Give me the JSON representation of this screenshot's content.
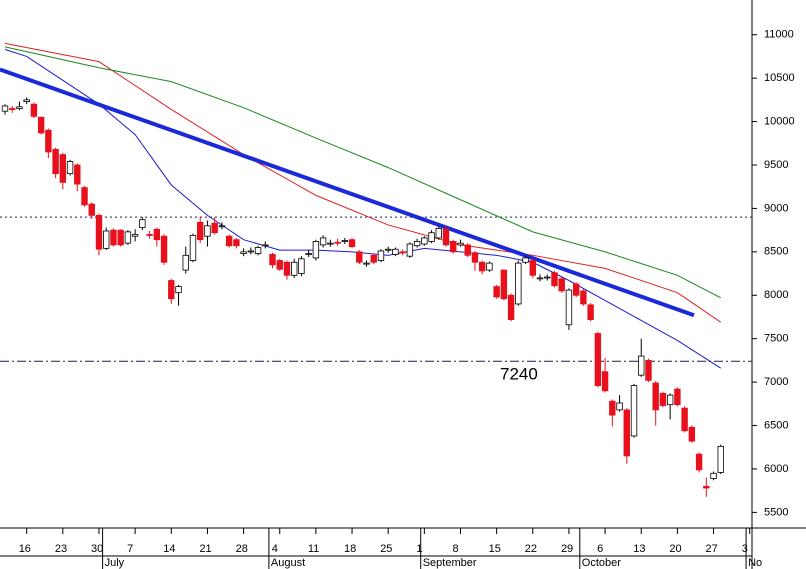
{
  "chart_data": {
    "type": "candlestick",
    "categories": [
      null,
      null,
      null,
      "16",
      null,
      null,
      null,
      null,
      "23",
      null,
      null,
      null,
      null,
      "30",
      null,
      null,
      null,
      null,
      "7",
      null,
      null,
      null,
      null,
      "14",
      null,
      null,
      null,
      null,
      "21",
      null,
      null,
      null,
      null,
      "28",
      null,
      null,
      null,
      null,
      "4",
      null,
      null,
      null,
      null,
      "11",
      null,
      null,
      null,
      null,
      "18",
      null,
      null,
      null,
      null,
      "25",
      null,
      null,
      null,
      null,
      "1",
      null,
      null,
      null,
      null,
      "8",
      null,
      null,
      null,
      null,
      "15",
      null,
      null,
      null,
      null,
      "22",
      null,
      null,
      null,
      null,
      "29",
      null,
      null,
      null,
      null,
      "6",
      null,
      null,
      null,
      null,
      "13",
      null,
      null,
      null,
      null,
      "20",
      null,
      null,
      null,
      null,
      "27",
      null,
      null,
      null,
      null,
      "3"
    ],
    "months": [
      {
        "category": 14,
        "label": "July"
      },
      {
        "category": 37,
        "label": "August"
      },
      {
        "category": 58,
        "label": "September"
      },
      {
        "category": 80,
        "label": "October"
      },
      {
        "category": 103,
        "label": "No"
      }
    ],
    "open": [
      10120,
      10150,
      10150,
      10230,
      10200,
      10050,
      9900,
      9680,
      9620,
      9400,
      9500,
      9240,
      9050,
      8920,
      8540,
      8750,
      8750,
      8600,
      8680,
      8780,
      8700,
      8760,
      8680,
      8170,
      8030,
      8290,
      8400,
      8840,
      8680,
      8830,
      8790,
      8680,
      8640,
      8480,
      8500,
      8480,
      8570,
      8470,
      8400,
      8380,
      8230,
      8250,
      8470,
      8430,
      8580,
      8590,
      8610,
      8620,
      8640,
      8500,
      8360,
      8460,
      8400,
      8520,
      8470,
      8500,
      8450,
      8570,
      8590,
      8620,
      8660,
      8760,
      8620,
      8580,
      8580,
      8490,
      8380,
      8290,
      8100,
      8290,
      8000,
      7900,
      8380,
      8400,
      8190,
      8200,
      8260,
      8190,
      7660,
      8130,
      8050,
      7890,
      7560,
      7120,
      6780,
      6680,
      6680,
      6380,
      7080,
      7250,
      6990,
      6870,
      6740,
      6920,
      6700,
      6480,
      6170,
      5800,
      5890,
      5960,
      null,
      null,
      null,
      null
    ],
    "high": [
      10200,
      10180,
      10230,
      10280,
      10220,
      10060,
      9920,
      9700,
      9640,
      9560,
      9520,
      9260,
      9070,
      8940,
      8780,
      8770,
      8760,
      8750,
      8760,
      8900,
      8740,
      8780,
      8700,
      8190,
      8120,
      8560,
      8710,
      8900,
      8860,
      8900,
      8840,
      8700,
      8660,
      8540,
      8550,
      8570,
      8620,
      8490,
      8420,
      8400,
      8420,
      8450,
      8520,
      8640,
      8690,
      8640,
      8650,
      8660,
      8660,
      8520,
      8400,
      8480,
      8530,
      8560,
      8550,
      8530,
      8610,
      8650,
      8680,
      8750,
      8800,
      8800,
      8640,
      8640,
      8600,
      8510,
      8400,
      8390,
      8120,
      8300,
      8020,
      8400,
      8450,
      8420,
      8240,
      8240,
      8280,
      8210,
      8080,
      8150,
      8070,
      7910,
      7580,
      7280,
      6800,
      6850,
      6700,
      6980,
      7500,
      7270,
      7010,
      6890,
      6870,
      6940,
      6720,
      6500,
      6190,
      5900,
      5970,
      6280,
      null,
      null,
      null,
      null
    ],
    "low": [
      10080,
      10100,
      10130,
      10200,
      10040,
      9850,
      9580,
      9350,
      9220,
      9380,
      9200,
      9020,
      8880,
      8460,
      8520,
      8560,
      8560,
      8580,
      8620,
      8750,
      8650,
      8560,
      8350,
      7900,
      7880,
      8250,
      8380,
      8600,
      8560,
      8700,
      8760,
      8550,
      8540,
      8450,
      8470,
      8460,
      8540,
      8310,
      8280,
      8180,
      8200,
      8220,
      8440,
      8400,
      8550,
      8560,
      8570,
      8590,
      8540,
      8360,
      8330,
      8360,
      8380,
      8490,
      8450,
      8460,
      8430,
      8550,
      8570,
      8600,
      8640,
      8560,
      8480,
      8560,
      8440,
      8280,
      8240,
      8270,
      7960,
      7940,
      7700,
      7880,
      8360,
      8200,
      8160,
      8170,
      8090,
      8030,
      7600,
      7980,
      7880,
      7700,
      6940,
      6880,
      6490,
      6660,
      6060,
      6360,
      7060,
      7000,
      6500,
      6710,
      6570,
      6720,
      6420,
      6300,
      5960,
      5680,
      5870,
      5940,
      null,
      null,
      null,
      null
    ],
    "close": [
      10180,
      10140,
      10170,
      10250,
      10060,
      9870,
      9650,
      9400,
      9300,
      9540,
      9280,
      9040,
      8920,
      8530,
      8740,
      8580,
      8580,
      8730,
      8700,
      8870,
      8690,
      8640,
      8380,
      7960,
      8100,
      8460,
      8690,
      8640,
      8800,
      8720,
      8800,
      8570,
      8570,
      8500,
      8510,
      8550,
      8580,
      8350,
      8300,
      8230,
      8380,
      8420,
      8480,
      8620,
      8660,
      8600,
      8600,
      8630,
      8560,
      8380,
      8370,
      8380,
      8510,
      8530,
      8530,
      8490,
      8590,
      8620,
      8660,
      8720,
      8770,
      8580,
      8500,
      8600,
      8460,
      8380,
      8280,
      8370,
      7980,
      7960,
      7720,
      8370,
      8430,
      8230,
      8200,
      8210,
      8110,
      8050,
      8060,
      8000,
      7900,
      7720,
      6960,
      6900,
      6620,
      6760,
      6150,
      6960,
      7300,
      7020,
      6680,
      6730,
      6850,
      6740,
      6440,
      6320,
      5990,
      5780,
      5950,
      6260,
      null,
      null,
      null,
      null
    ],
    "up_color": "#ffffff",
    "down_color": "#e8101c",
    "lines": [
      {
        "color": "#1c1ccc",
        "width": 1,
        "x": [
          0,
          3,
          13,
          18,
          23,
          28,
          33,
          38,
          43,
          48,
          53,
          58,
          63,
          68,
          73,
          78,
          83,
          88,
          93,
          99
        ],
        "values": [
          10830,
          10750,
          10200,
          9850,
          9270,
          8920,
          8640,
          8520,
          8520,
          8500,
          8460,
          8540,
          8500,
          8460,
          8380,
          8170,
          7940,
          7710,
          7480,
          7160
        ]
      },
      {
        "color": "#e02020",
        "width": 1,
        "x": [
          0,
          13,
          23,
          33,
          43,
          53,
          63,
          73,
          83,
          93,
          99
        ],
        "values": [
          10900,
          10690,
          10140,
          9620,
          9150,
          8810,
          8580,
          8460,
          8310,
          8030,
          7690
        ]
      },
      {
        "color": "#1a8a1a",
        "width": 1,
        "x": [
          0,
          13,
          23,
          33,
          43,
          53,
          63,
          73,
          83,
          93,
          99
        ],
        "values": [
          10860,
          10620,
          10460,
          10160,
          9810,
          9470,
          9100,
          8730,
          8500,
          8230,
          7970
        ]
      },
      {
        "color": "#1a2ad8",
        "width": 4,
        "x": [
          -0.7,
          95.3
        ],
        "values": [
          10600,
          7770
        ]
      }
    ],
    "hlines": [
      {
        "value": 8900,
        "dash": "2,3"
      },
      {
        "value": 7240,
        "dash": "9,3,2,3"
      }
    ],
    "annotation": "7240",
    "ylim": [
      5320,
      11400
    ],
    "yticks": [
      5500,
      6000,
      6500,
      7000,
      7500,
      8000,
      8500,
      9000,
      9500,
      10000,
      10500,
      11000
    ]
  }
}
